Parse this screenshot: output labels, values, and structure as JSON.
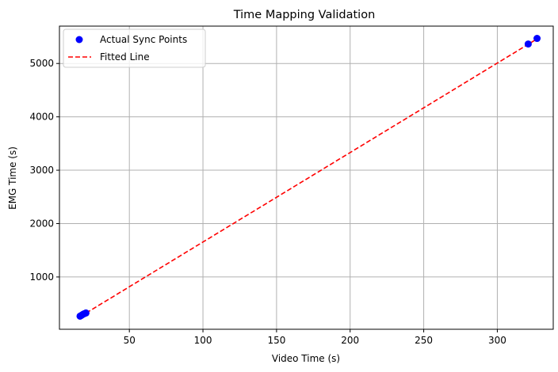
{
  "chart_data": {
    "type": "scatter",
    "title": "Time Mapping Validation",
    "xlabel": "Video Time (s)",
    "ylabel": "EMG Time (s)",
    "xlim": [
      2.5,
      338
    ],
    "ylim": [
      20,
      5700
    ],
    "grid": true,
    "legend_position": "top-left",
    "x_ticks": [
      50,
      100,
      150,
      200,
      250,
      300
    ],
    "y_ticks": [
      1000,
      2000,
      3000,
      4000,
      5000
    ],
    "series": [
      {
        "name": "Actual Sync Points",
        "kind": "markers",
        "color": "#0000ff",
        "points": [
          {
            "x": 16.5,
            "y": 265
          },
          {
            "x": 17.5,
            "y": 282
          },
          {
            "x": 18.5,
            "y": 300
          },
          {
            "x": 19.5,
            "y": 313
          },
          {
            "x": 20.5,
            "y": 325
          },
          {
            "x": 321,
            "y": 5365
          },
          {
            "x": 327,
            "y": 5470
          }
        ]
      },
      {
        "name": "Fitted Line",
        "kind": "dashed-line",
        "color": "#ff0000",
        "points": [
          {
            "x": 16.5,
            "y": 255
          },
          {
            "x": 327,
            "y": 5460
          }
        ]
      }
    ]
  }
}
